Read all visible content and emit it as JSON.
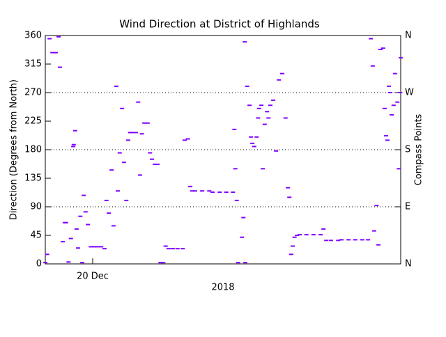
{
  "chart_data": {
    "type": "scatter",
    "title": "Wind Direction at District of Highlands",
    "y_label": "Direction (Degrees from North)",
    "y2_label": "Compass Points",
    "x_label": "2018",
    "color": "#7f00ff",
    "xlim": [
      19,
      26.5
    ],
    "xticks": [
      {
        "value": 20,
        "label": "20 Dec"
      }
    ],
    "ylim": [
      0,
      360
    ],
    "yticks": [
      0,
      45,
      90,
      135,
      180,
      225,
      270,
      315,
      360
    ],
    "y2lim": [
      0,
      360
    ],
    "y2ticks": [
      {
        "value": 0,
        "label": "N"
      },
      {
        "value": 90,
        "label": "E"
      },
      {
        "value": 180,
        "label": "S"
      },
      {
        "value": 270,
        "label": "W"
      },
      {
        "value": 360,
        "label": "N"
      }
    ],
    "grid": true,
    "x": [
      19.0,
      19.04,
      19.09,
      19.15,
      19.22,
      19.28,
      19.31,
      19.37,
      19.41,
      19.44,
      19.49,
      19.54,
      19.59,
      19.6,
      19.63,
      19.66,
      19.69,
      19.74,
      19.78,
      19.81,
      19.85,
      19.9,
      19.96,
      20.03,
      20.1,
      20.18,
      20.25,
      20.29,
      20.34,
      20.4,
      20.44,
      20.5,
      20.53,
      20.57,
      20.62,
      20.66,
      20.71,
      20.75,
      20.79,
      20.84,
      20.91,
      20.96,
      21.0,
      21.04,
      21.09,
      21.16,
      21.21,
      21.25,
      21.31,
      21.37,
      21.43,
      21.49,
      21.54,
      21.6,
      21.69,
      21.79,
      21.9,
      21.94,
      22.01,
      22.06,
      22.1,
      22.16,
      22.31,
      22.46,
      22.53,
      22.68,
      22.82,
      22.96,
      22.99,
      23.01,
      23.04,
      23.07,
      23.15,
      23.18,
      23.21,
      23.22,
      23.26,
      23.31,
      23.34,
      23.37,
      23.41,
      23.46,
      23.49,
      23.51,
      23.56,
      23.59,
      23.63,
      23.68,
      23.71,
      23.75,
      23.81,
      23.87,
      23.93,
      24.0,
      24.07,
      24.12,
      24.15,
      24.19,
      24.22,
      24.26,
      24.31,
      24.37,
      24.51,
      24.66,
      24.81,
      24.87,
      24.93,
      25.03,
      25.18,
      25.25,
      25.4,
      25.54,
      25.69,
      25.81,
      25.87,
      25.91,
      25.94,
      25.99,
      26.03,
      26.07,
      26.13,
      26.16,
      26.19,
      26.22,
      26.25,
      26.28,
      26.31,
      26.35,
      26.38,
      26.43,
      26.46,
      26.49,
      26.5
    ],
    "values": [
      2,
      15,
      355,
      333,
      333,
      358,
      310,
      35,
      65,
      65,
      3,
      40,
      185,
      188,
      210,
      55,
      25,
      75,
      2,
      108,
      82,
      62,
      27,
      27,
      27,
      27,
      24,
      100,
      80,
      148,
      60,
      280,
      115,
      175,
      245,
      160,
      100,
      195,
      207,
      207,
      207,
      255,
      140,
      205,
      222,
      222,
      175,
      165,
      157,
      157,
      2,
      2,
      28,
      24,
      24,
      24,
      24,
      195,
      197,
      122,
      115,
      115,
      115,
      115,
      113,
      113,
      113,
      113,
      212,
      150,
      100,
      2,
      42,
      73,
      350,
      2,
      280,
      250,
      200,
      190,
      185,
      200,
      230,
      245,
      250,
      150,
      220,
      240,
      230,
      250,
      258,
      178,
      290,
      300,
      230,
      120,
      105,
      15,
      28,
      42,
      45,
      46,
      46,
      46,
      46,
      55,
      37,
      37,
      37,
      38,
      38,
      38,
      38,
      38,
      355,
      312,
      52,
      92,
      30,
      338,
      340,
      245,
      202,
      195,
      280,
      270,
      235,
      250,
      300,
      255,
      150,
      270,
      325
    ]
  }
}
